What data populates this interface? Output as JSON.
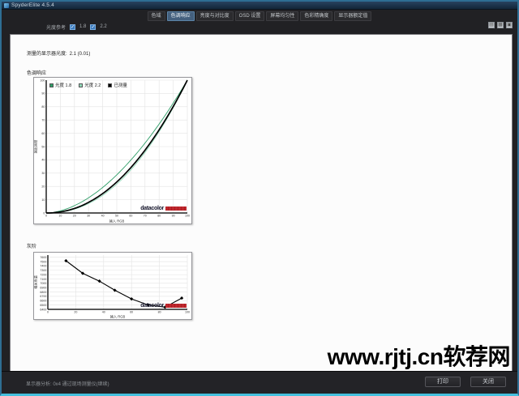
{
  "window": {
    "title": "SpyderElite 4.5.4"
  },
  "nav": {
    "tabs": [
      {
        "label": "色域",
        "active": false
      },
      {
        "label": "色调响应",
        "active": true
      },
      {
        "label": "亮度与对比度",
        "active": false
      },
      {
        "label": "OSD 设置",
        "active": false
      },
      {
        "label": "屏幕均匀性",
        "active": false
      },
      {
        "label": "色彩精确度",
        "active": false
      },
      {
        "label": "显示器额定值",
        "active": false
      }
    ]
  },
  "subtoolbar": {
    "label": "光度参考",
    "options": [
      {
        "value": "1.8",
        "checked": true
      },
      {
        "value": "2.2",
        "checked": true
      }
    ],
    "icons": [
      "chart-panel-icon",
      "grid-panel-icon",
      "report-panel-icon"
    ]
  },
  "content": {
    "measured_label": "测量的显示器光度:",
    "measured_value": "2.1 (0.01)",
    "section1_title": "色调响应",
    "section2_title": "灰阶"
  },
  "brand": {
    "name": "datacolor"
  },
  "watermark": "www.rjtj.cn软荐网",
  "statusbar": {
    "text": "显示器分析: 0x4 通过现场测量仪(继续)",
    "print_label": "打印",
    "close_label": "关闭"
  },
  "colors": {
    "accent_cyan": "#45c0dd",
    "gamma_1_8": "#2f9e68",
    "gamma_2_2": "#90d8b8",
    "measured": "#000000",
    "logo_red": "#c0272d"
  },
  "chart_data": [
    {
      "type": "line",
      "name": "色调响应",
      "xlabel": "输入 RGB",
      "ylabel": "输出亮度",
      "xlim": [
        0,
        100
      ],
      "ylim": [
        0,
        100
      ],
      "xticks": [
        0,
        10,
        20,
        30,
        40,
        50,
        60,
        70,
        80,
        90,
        100
      ],
      "yticks": [
        0,
        10,
        20,
        30,
        40,
        50,
        60,
        70,
        80,
        90,
        100
      ],
      "grid": true,
      "legend": true,
      "legend_position": "top-left",
      "series": [
        {
          "name": "光度 1.8",
          "color": "#2f9e68",
          "gamma": 1.8,
          "width": 0.9
        },
        {
          "name": "光度 2.2",
          "color": "#90d8b8",
          "gamma": 2.2,
          "width": 0.9
        },
        {
          "name": "已测量",
          "color": "#000000",
          "gamma": 2.1,
          "width": 1.7
        }
      ]
    },
    {
      "type": "line",
      "name": "灰阶",
      "xlabel": "输入 RGB",
      "ylabel": "相关色温",
      "xlim": [
        0,
        100
      ],
      "ylim": [
        6400,
        7650
      ],
      "xticks": [
        0,
        20,
        40,
        60,
        80,
        100
      ],
      "yticks": [
        6400,
        6500,
        6600,
        6700,
        6800,
        6900,
        7000,
        7100,
        7200,
        7300,
        7400,
        7500,
        7600
      ],
      "grid": true,
      "legend": false,
      "series": [
        {
          "name": "已测量",
          "color": "#000000",
          "width": 1.1,
          "marker": "diamond",
          "points": [
            [
              13,
              7520
            ],
            [
              25,
              7230
            ],
            [
              37,
              7050
            ],
            [
              48,
              6840
            ],
            [
              60,
              6640
            ],
            [
              72,
              6500
            ],
            [
              84,
              6450
            ],
            [
              96,
              6660
            ]
          ]
        }
      ]
    }
  ]
}
